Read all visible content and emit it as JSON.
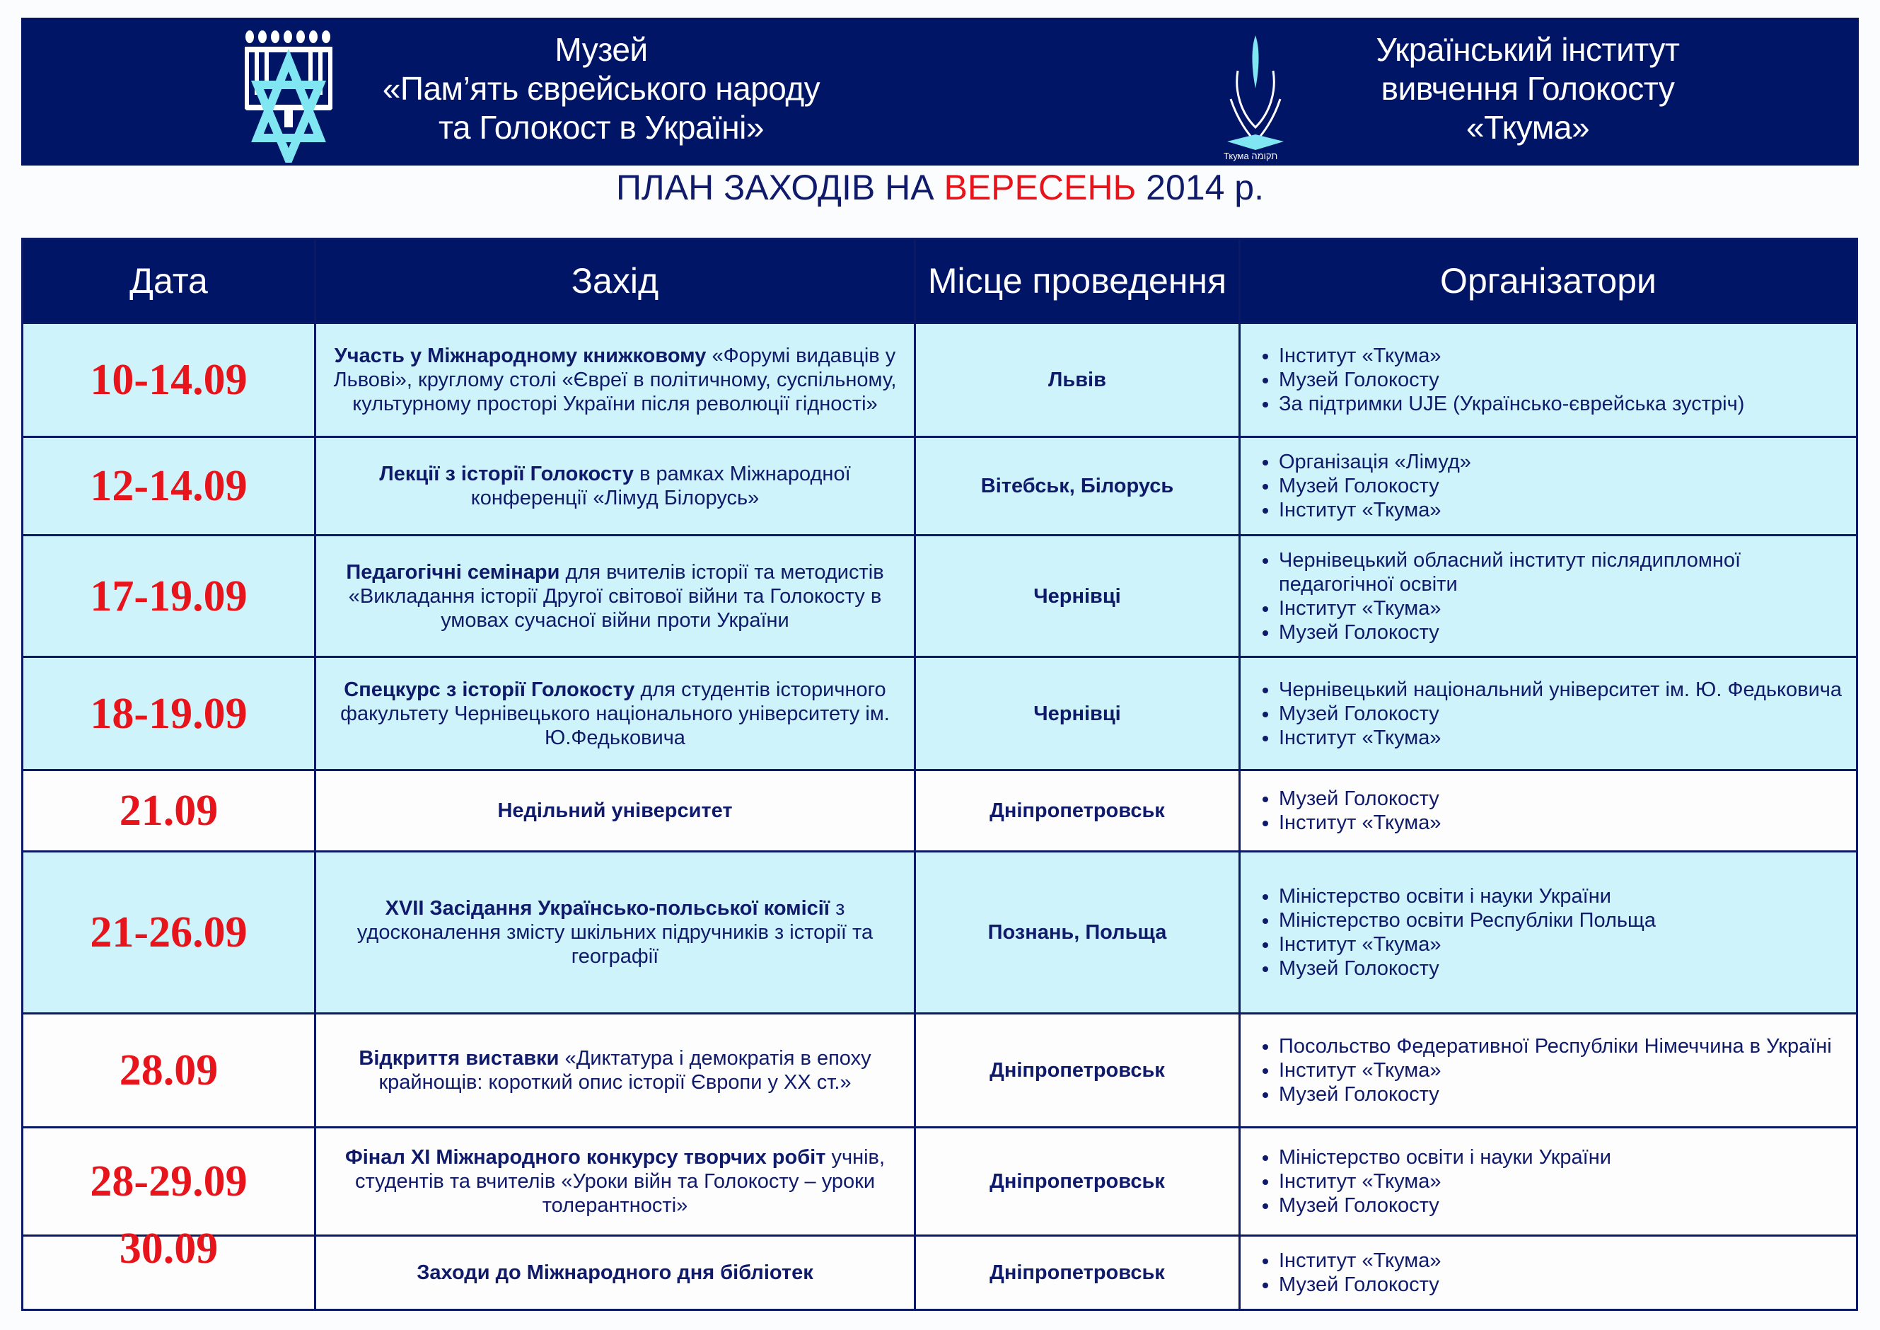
{
  "header": {
    "museum": {
      "lines": [
        "Музей",
        "«Пам’ять єврейського народу",
        "та Голокост в Україні»"
      ],
      "logo": "menorah-star-of-david-logo"
    },
    "institute": {
      "lines": [
        "Український інститут",
        "вивчення Голокосту",
        "«Ткума»"
      ],
      "logo": "tkuma-hands-flame-logo",
      "logo_text": "Ткума תקומה"
    }
  },
  "title": {
    "prefix": "ПЛАН ЗАХОДІВ НА",
    "month": "ВЕРЕСЕНЬ",
    "suffix": "2014 р."
  },
  "colors": {
    "navy": "#001566",
    "red": "#e8141b",
    "highlight": "#cff3fa"
  },
  "table": {
    "headers": [
      "Дата",
      "Захід",
      "Місце проведення",
      "Організатори"
    ],
    "rows": [
      {
        "date": "10-14.09",
        "event_bold": "Участь у Міжнародному книжковому",
        "event_rest": "«Форумі видавців у Львові», круглому столі «Євреї в політичному, суспільному, культурному просторі України після революції гідності»",
        "place": "Львів",
        "organizers": [
          "Інститут «Ткума»",
          "Музей Голокосту",
          "За підтримки UJE (Українсько-єврейська зустріч)"
        ],
        "highlight": true
      },
      {
        "date": "12-14.09",
        "event_bold": "Лекції з історії Голокосту",
        "event_rest": "в рамках Міжнародної конференції «Лімуд Білорусь»",
        "place": "Вітебськ, Білорусь",
        "organizers": [
          "Організація «Лімуд»",
          "Музей Голокосту",
          "Інститут «Ткума»"
        ],
        "highlight": true
      },
      {
        "date": "17-19.09",
        "event_bold": "Педагогічні семінари",
        "event_rest": "для вчителів історії та методистів «Викладання історії Другої світової війни та Голокосту в умовах сучасної війни проти України",
        "place": "Чернівці",
        "organizers": [
          "Чернівецький обласний інститут післядипломної педагогічної освіти",
          "Інститут «Ткума»",
          "Музей Голокосту"
        ],
        "highlight": true
      },
      {
        "date": "18-19.09",
        "event_bold": "Спецкурс з історії Голокосту",
        "event_rest": "для студентів історичного факультету Чернівецького національного університету ім. Ю.Федьковича",
        "place": "Чернівці",
        "organizers": [
          "Чернівецький національний університет ім. Ю. Федьковича",
          "Музей Голокосту",
          "Інститут «Ткума»"
        ],
        "highlight": true
      },
      {
        "date": "21.09",
        "event_bold": "Недільний університет",
        "event_rest": "",
        "place": "Дніпропетровськ",
        "organizers": [
          "Музей Голокосту",
          "Інститут «Ткума»"
        ],
        "highlight": false
      },
      {
        "date": "21-26.09",
        "event_bold": "XVII Засідання Українсько-польської комісії",
        "event_rest": "з удосконалення змісту шкільних підручників з історії та географії",
        "place": "Познань, Польща",
        "organizers": [
          "Міністерство освіти і науки України",
          "Міністерство освіти Республіки Польща",
          "Інститут «Ткума»",
          "Музей Голокосту"
        ],
        "highlight": true
      },
      {
        "date": "28.09",
        "event_bold": "Відкриття виставки",
        "event_rest": "«Диктатура і демократія в епоху крайнощів: короткий опис історії Європи у XX ст.»",
        "place": "Дніпропетровськ",
        "organizers": [
          "Посольство Федеративної Республіки Німеччина в Україні",
          "Інститут «Ткума»",
          "Музей Голокосту"
        ],
        "highlight": false
      },
      {
        "date": "28-29.09",
        "event_bold": "Фінал XI Міжнародного конкурсу творчих робіт",
        "event_rest": "учнів, студентів та вчителів «Уроки війн та Голокосту – уроки толерантності»",
        "place": "Дніпропетровськ",
        "organizers": [
          "Міністерство освіти і науки України",
          "Інститут «Ткума»",
          "Музей Голокосту"
        ],
        "highlight": false
      },
      {
        "date": "30.09",
        "event_bold": "Заходи до Міжнародного дня бібліотек",
        "event_rest": "",
        "place": "Дніпропетровськ",
        "organizers": [
          "Інститут «Ткума»",
          "Музей Голокосту"
        ],
        "highlight": false
      }
    ]
  }
}
